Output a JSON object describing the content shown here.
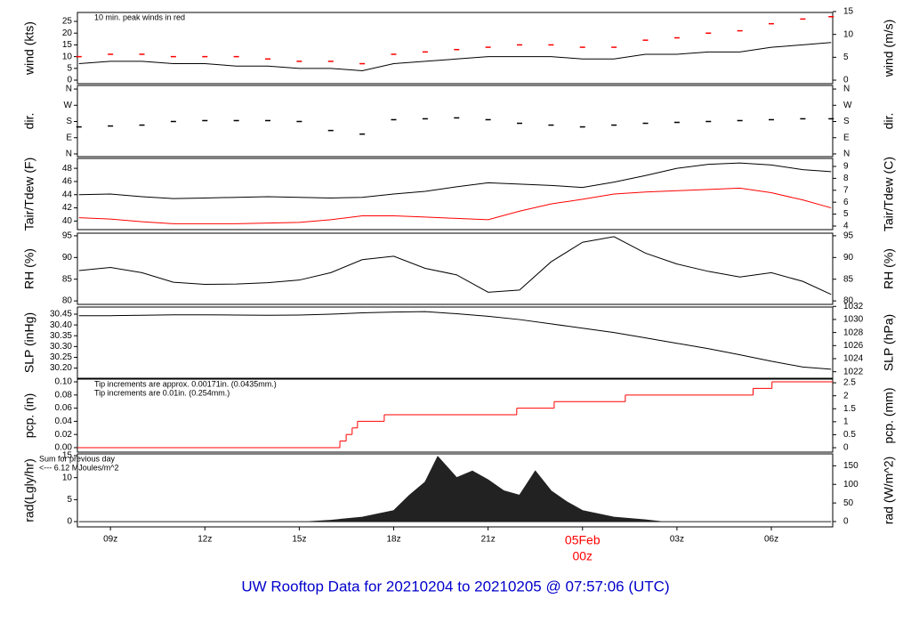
{
  "title": "UW Rooftop Data for 20210204  to  20210205 @ 07:57:06  (UTC)",
  "chart_data": [
    {
      "type": "line",
      "ylabel": "wind (kts)",
      "y2label": "wind (m/s)",
      "xlim": [
        7.95,
        31.95
      ],
      "ylim": [
        -1.5,
        28.8
      ],
      "yticks": [
        0,
        5,
        10,
        15,
        20,
        25
      ],
      "y2lim": [
        -0.77,
        14.8
      ],
      "y2ticks": [
        0,
        5,
        10,
        15
      ],
      "annotations": [
        {
          "text": "10 min. peak winds in red",
          "color": "#ff0000"
        }
      ],
      "x": [
        8,
        9,
        10,
        11,
        12,
        13,
        14,
        15,
        16,
        17,
        18,
        19,
        20,
        21,
        22,
        23,
        24,
        25,
        26,
        27,
        28,
        29,
        30,
        31,
        31.9
      ],
      "series": [
        {
          "name": "wind",
          "color": "#000000",
          "mark": "line",
          "values": [
            7,
            8,
            8,
            7,
            7,
            6,
            6,
            5,
            5,
            4,
            7,
            8,
            9,
            10,
            10,
            10,
            9,
            9,
            11,
            11,
            12,
            12,
            14,
            15,
            16
          ]
        },
        {
          "name": "peak",
          "color": "#ff0000",
          "mark": "dash",
          "values": [
            10,
            11,
            11,
            10,
            10,
            10,
            9,
            8,
            8,
            7,
            11,
            12,
            13,
            14,
            15,
            15,
            14,
            14,
            17,
            18,
            20,
            21,
            24,
            26,
            27
          ]
        }
      ]
    },
    {
      "type": "line",
      "ylabel": "dir.",
      "y2label": "dir.",
      "xlim": [
        7.95,
        31.95
      ],
      "ylim": [
        -15,
        380
      ],
      "yticks": [
        {
          "value": 0,
          "label": "N"
        },
        {
          "value": 90,
          "label": "E"
        },
        {
          "value": 180,
          "label": "S"
        },
        {
          "value": 270,
          "label": "W"
        },
        {
          "value": 360,
          "label": "N"
        }
      ],
      "y2lim": [
        -15,
        380
      ],
      "y2ticks": [
        {
          "value": 0,
          "label": "N"
        },
        {
          "value": 90,
          "label": "E"
        },
        {
          "value": 180,
          "label": "S"
        },
        {
          "value": 270,
          "label": "W"
        },
        {
          "value": 360,
          "label": "N"
        }
      ],
      "x": [
        8,
        9,
        10,
        11,
        12,
        13,
        14,
        15,
        16,
        17,
        18,
        19,
        20,
        21,
        22,
        23,
        24,
        25,
        26,
        27,
        28,
        29,
        30,
        31,
        31.9
      ],
      "series": [
        {
          "name": "direction",
          "color": "#000000",
          "mark": "dash",
          "values": [
            150,
            155,
            160,
            180,
            185,
            185,
            185,
            180,
            130,
            110,
            190,
            195,
            200,
            190,
            170,
            160,
            150,
            160,
            170,
            175,
            180,
            185,
            190,
            195,
            195
          ]
        }
      ]
    },
    {
      "type": "line",
      "ylabel": "Tair/Tdew (F)",
      "y2label": "Tair/Tdew (C)",
      "xlim": [
        7.95,
        31.95
      ],
      "ylim": [
        38.7,
        49.5
      ],
      "yticks": [
        40,
        42,
        44,
        46,
        48
      ],
      "y2lim": [
        3.7,
        9.67
      ],
      "y2ticks": [
        4,
        5,
        6,
        7,
        8,
        9
      ],
      "x": [
        8,
        9,
        10,
        11,
        12,
        13,
        14,
        15,
        16,
        17,
        18,
        19,
        20,
        21,
        22,
        23,
        24,
        25,
        26,
        27,
        28,
        29,
        30,
        31,
        31.9
      ],
      "series": [
        {
          "name": "Tair",
          "color": "#000000",
          "mark": "line",
          "values": [
            44,
            44.1,
            43.7,
            43.4,
            43.5,
            43.6,
            43.7,
            43.6,
            43.5,
            43.6,
            44.1,
            44.5,
            45.2,
            45.8,
            45.6,
            45.4,
            45.1,
            45.9,
            46.9,
            48,
            48.6,
            48.8,
            48.5,
            47.8,
            47.5
          ]
        },
        {
          "name": "Tdew",
          "color": "#ff0000",
          "mark": "line",
          "values": [
            40.5,
            40.3,
            39.9,
            39.6,
            39.6,
            39.6,
            39.7,
            39.8,
            40.2,
            40.8,
            40.8,
            40.6,
            40.4,
            40.2,
            41.5,
            42.6,
            43.3,
            44.1,
            44.4,
            44.6,
            44.8,
            45,
            44.3,
            43.2,
            42
          ]
        }
      ]
    },
    {
      "type": "line",
      "ylabel": "RH (%)",
      "y2label": "RH (%)",
      "xlim": [
        7.95,
        31.95
      ],
      "ylim": [
        79.2,
        95.6
      ],
      "yticks": [
        80,
        85,
        90,
        95
      ],
      "y2lim": [
        79.2,
        95.6
      ],
      "y2ticks": [
        80,
        85,
        90,
        95
      ],
      "x": [
        8,
        9,
        10,
        11,
        12,
        13,
        14,
        15,
        16,
        17,
        18,
        19,
        20,
        21,
        22,
        23,
        24,
        25,
        26,
        27,
        28,
        29,
        30,
        31,
        31.9
      ],
      "series": [
        {
          "name": "RH",
          "color": "#000000",
          "mark": "line",
          "values": [
            87,
            87.7,
            86.5,
            84.3,
            83.8,
            83.9,
            84.2,
            84.8,
            86.5,
            89.5,
            90.3,
            87.5,
            86,
            82,
            82.5,
            89,
            93.5,
            94.8,
            91,
            88.5,
            86.8,
            85.5,
            86.5,
            84.5,
            81.5
          ]
        }
      ]
    },
    {
      "type": "line",
      "ylabel": "SLP (inHg)",
      "y2label": "SLP (hPa)",
      "xlim": [
        7.95,
        31.95
      ],
      "ylim": [
        30.153,
        30.483
      ],
      "yticks": [
        {
          "value": 30.2,
          "label": "30.20"
        },
        30.25,
        {
          "value": 30.3,
          "label": "30.30"
        },
        30.35,
        {
          "value": 30.4,
          "label": "30.40"
        },
        30.45
      ],
      "y2lim": [
        1021.0,
        1031.9
      ],
      "y2ticks": [
        1022,
        1024,
        1026,
        1028,
        1030,
        1032
      ],
      "x": [
        8,
        9,
        10,
        11,
        12,
        13,
        14,
        15,
        16,
        17,
        18,
        19,
        20,
        21,
        22,
        23,
        24,
        25,
        26,
        27,
        28,
        29,
        30,
        31,
        31.9
      ],
      "series": [
        {
          "name": "SLP",
          "color": "#000000",
          "mark": "line",
          "values": [
            30.443,
            30.443,
            30.445,
            30.447,
            30.447,
            30.446,
            30.445,
            30.446,
            30.45,
            30.456,
            30.46,
            30.462,
            30.452,
            30.44,
            30.425,
            30.405,
            30.385,
            30.365,
            30.34,
            30.315,
            30.29,
            30.262,
            30.232,
            30.205,
            30.195
          ]
        }
      ]
    },
    {
      "type": "step",
      "ylabel": "pcp. (in)",
      "y2label": "pcp. (mm)",
      "xlim": [
        7.95,
        31.95
      ],
      "ylim": [
        -0.0068,
        0.1041
      ],
      "yticks": [
        {
          "value": 0,
          "label": "0.00"
        },
        {
          "value": 0.02,
          "label": "0.02"
        },
        {
          "value": 0.04,
          "label": "0.04"
        },
        {
          "value": 0.06,
          "label": "0.06"
        },
        {
          "value": 0.08,
          "label": "0.08"
        },
        {
          "value": 0.1,
          "label": "0.10"
        }
      ],
      "y2lim": [
        -0.17,
        2.64
      ],
      "y2ticks": [
        0,
        0.5,
        1,
        1.5,
        2,
        2.5
      ],
      "annotations": [
        {
          "text": "Tip increments are approx. 0.00171in. (0.0435mm.)",
          "color": "#ff0000"
        },
        {
          "text": "Tip increments are 0.01in. (0.254mm.)",
          "color": "#0000ff"
        }
      ],
      "x": [
        7.95,
        16.29,
        16.49,
        16.68,
        16.85,
        17.7,
        21.91,
        23.1,
        25.36,
        29.42,
        30.02
      ],
      "series": [
        {
          "name": "precipitation",
          "color": "#ff0000",
          "mark": "step",
          "values": [
            0,
            0.01,
            0.02,
            0.03,
            0.04,
            0.05,
            0.06,
            0.07,
            0.08,
            0.09,
            0.1
          ]
        }
      ]
    },
    {
      "type": "area",
      "ylabel": "rad(Lgly/hr)",
      "y2label": "rad (W/m^2)",
      "xlim": [
        7.95,
        31.95
      ],
      "ylim": [
        -1.2,
        15.4
      ],
      "yticks": [
        0,
        5,
        10,
        15
      ],
      "y2lim": [
        -14.3,
        182
      ],
      "y2ticks": [
        0,
        50,
        100,
        150
      ],
      "annotations": [
        {
          "text": "Sum for previous day",
          "color": "#a020f0"
        },
        {
          "text": "<--- 6.12 MJoules/m^2",
          "color": "#a020f0"
        }
      ],
      "xticks": [
        {
          "value": 9,
          "label": "09z"
        },
        {
          "value": 12,
          "label": "12z"
        },
        {
          "value": 15,
          "label": "15z"
        },
        {
          "value": 18,
          "label": "18z"
        },
        {
          "value": 21,
          "label": "21z"
        },
        {
          "value": 24,
          "label": "00z",
          "date_label": "05Feb"
        },
        {
          "value": 27,
          "label": "03z"
        },
        {
          "value": 30,
          "label": "06z"
        }
      ],
      "x": [
        8,
        15.3,
        16,
        17,
        18,
        18.5,
        19,
        19.4,
        20,
        20.5,
        21,
        21.5,
        22,
        22.5,
        23,
        23.5,
        24,
        25,
        26,
        26.5,
        31.9
      ],
      "series": [
        {
          "name": "radiation",
          "color": "#222222",
          "mark": "area",
          "values": [
            0,
            0,
            0.3,
            1,
            2.5,
            6,
            9,
            14.8,
            10,
            11.5,
            9.5,
            7,
            6,
            11.5,
            7,
            4.5,
            2.5,
            1,
            0.4,
            0,
            0
          ]
        }
      ]
    }
  ]
}
